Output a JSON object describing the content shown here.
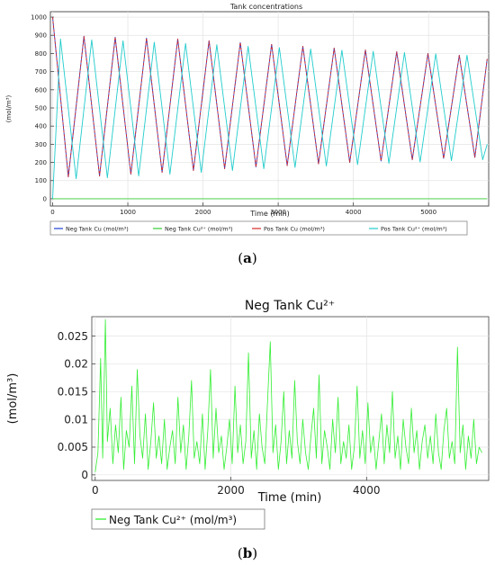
{
  "chart_data": [
    {
      "type": "line",
      "panel_label": "a",
      "title": "Tank concentrations",
      "xlabel": "Time (min)",
      "ylabel": "(mol/m³)",
      "xlim": [
        -30,
        5800
      ],
      "ylim": [
        -40,
        1030
      ],
      "xticks": [
        0,
        1000,
        2000,
        3000,
        4000,
        5000
      ],
      "yticks": [
        0,
        100,
        200,
        300,
        400,
        500,
        600,
        700,
        800,
        900,
        1000
      ],
      "grid": true,
      "legend_position": "bottom",
      "series": [
        {
          "name": "Neg Tank Cu (mol/m³)",
          "color": "#1f3fd6",
          "x": [
            0,
            208,
            416,
            624,
            832,
            1040,
            1248,
            1456,
            1664,
            1872,
            2080,
            2288,
            2496,
            2704,
            2912,
            3120,
            3328,
            3536,
            3744,
            3952,
            4160,
            4368,
            4576,
            4784,
            4992,
            5200,
            5408,
            5616,
            5780
          ],
          "y": [
            1000,
            120,
            895,
            125,
            890,
            135,
            885,
            145,
            880,
            155,
            870,
            165,
            860,
            175,
            850,
            182,
            840,
            192,
            830,
            200,
            820,
            208,
            810,
            215,
            800,
            222,
            790,
            228,
            770
          ]
        },
        {
          "name": "Neg Tank Cu²⁺ (mol/m³)",
          "color": "#33cc33",
          "x": [
            0,
            5780
          ],
          "y": [
            0,
            0
          ]
        },
        {
          "name": "Pos Tank Cu (mol/m³)",
          "color": "#d42a2a",
          "x": [
            0,
            208,
            416,
            624,
            832,
            1040,
            1248,
            1456,
            1664,
            1872,
            2080,
            2288,
            2496,
            2704,
            2912,
            3120,
            3328,
            3536,
            3744,
            3952,
            4160,
            4368,
            4576,
            4784,
            4992,
            5200,
            5408,
            5616,
            5780
          ],
          "y": [
            1000,
            120,
            895,
            125,
            890,
            135,
            885,
            145,
            880,
            155,
            870,
            165,
            860,
            175,
            850,
            182,
            840,
            192,
            830,
            200,
            820,
            208,
            810,
            215,
            800,
            222,
            790,
            228,
            770
          ]
        },
        {
          "name": "Pos Tank Cu²⁺ (mol/m³)",
          "color": "#22cccc",
          "x": [
            0,
            104,
            312,
            520,
            728,
            936,
            1144,
            1352,
            1560,
            1768,
            1976,
            2184,
            2392,
            2600,
            2808,
            3016,
            3224,
            3432,
            3640,
            3848,
            4056,
            4264,
            4472,
            4680,
            4888,
            5096,
            5304,
            5512,
            5720,
            5780
          ],
          "y": [
            0,
            880,
            110,
            875,
            115,
            870,
            125,
            862,
            135,
            855,
            145,
            848,
            155,
            840,
            165,
            832,
            172,
            825,
            180,
            818,
            188,
            812,
            195,
            805,
            202,
            798,
            210,
            790,
            215,
            300
          ]
        }
      ]
    },
    {
      "type": "line",
      "panel_label": "b",
      "title": "Neg Tank Cu²⁺",
      "xlabel": "Time (min)",
      "ylabel": "(mol/m³)",
      "xlim": [
        -50,
        5800
      ],
      "ylim": [
        -0.001,
        0.0285
      ],
      "xticks": [
        0,
        2000,
        4000
      ],
      "yticks": [
        0,
        0.005,
        0.01,
        0.015,
        0.02,
        0.025
      ],
      "ytick_labels": [
        "0",
        "0.005",
        "0.01",
        "0.015",
        "0.02",
        "0.025"
      ],
      "grid": true,
      "legend_position": "bottom-left",
      "series": [
        {
          "name": "Neg Tank Cu²⁺ (mol/m³)",
          "color": "#33ee33",
          "x": [
            0,
            40,
            80,
            110,
            150,
            180,
            220,
            260,
            300,
            340,
            380,
            420,
            460,
            500,
            540,
            580,
            620,
            660,
            700,
            740,
            780,
            820,
            860,
            900,
            940,
            980,
            1020,
            1060,
            1100,
            1140,
            1180,
            1220,
            1260,
            1300,
            1340,
            1380,
            1420,
            1460,
            1500,
            1540,
            1580,
            1620,
            1660,
            1700,
            1740,
            1780,
            1820,
            1860,
            1900,
            1940,
            1980,
            2020,
            2060,
            2100,
            2140,
            2180,
            2220,
            2260,
            2300,
            2340,
            2380,
            2420,
            2460,
            2500,
            2540,
            2580,
            2620,
            2660,
            2700,
            2740,
            2780,
            2820,
            2860,
            2900,
            2940,
            2980,
            3020,
            3060,
            3100,
            3140,
            3180,
            3220,
            3260,
            3300,
            3340,
            3380,
            3420,
            3460,
            3500,
            3540,
            3580,
            3620,
            3660,
            3700,
            3740,
            3780,
            3820,
            3860,
            3900,
            3940,
            3980,
            4020,
            4060,
            4100,
            4140,
            4180,
            4220,
            4260,
            4300,
            4340,
            4380,
            4420,
            4460,
            4500,
            4540,
            4580,
            4620,
            4660,
            4700,
            4740,
            4780,
            4820,
            4860,
            4900,
            4940,
            4980,
            5020,
            5060,
            5100,
            5140,
            5180,
            5220,
            5260,
            5300,
            5340,
            5380,
            5420,
            5460,
            5500,
            5540,
            5580,
            5620,
            5660,
            5700
          ],
          "y": [
            0.0005,
            0.004,
            0.021,
            0.003,
            0.028,
            0.006,
            0.012,
            0.002,
            0.009,
            0.004,
            0.014,
            0.001,
            0.008,
            0.005,
            0.016,
            0.002,
            0.019,
            0.007,
            0.003,
            0.011,
            0.001,
            0.006,
            0.013,
            0.003,
            0.007,
            0.002,
            0.01,
            0.001,
            0.005,
            0.008,
            0.002,
            0.014,
            0.004,
            0.009,
            0.001,
            0.007,
            0.017,
            0.003,
            0.006,
            0.002,
            0.011,
            0.001,
            0.008,
            0.019,
            0.003,
            0.012,
            0.004,
            0.007,
            0.001,
            0.005,
            0.01,
            0.002,
            0.016,
            0.004,
            0.009,
            0.002,
            0.006,
            0.022,
            0.003,
            0.008,
            0.001,
            0.011,
            0.005,
            0.002,
            0.013,
            0.024,
            0.004,
            0.009,
            0.001,
            0.006,
            0.015,
            0.002,
            0.008,
            0.003,
            0.017,
            0.006,
            0.002,
            0.01,
            0.004,
            0.001,
            0.007,
            0.012,
            0.003,
            0.018,
            0.002,
            0.008,
            0.005,
            0.001,
            0.01,
            0.004,
            0.014,
            0.002,
            0.006,
            0.003,
            0.009,
            0.001,
            0.005,
            0.016,
            0.003,
            0.008,
            0.002,
            0.013,
            0.004,
            0.007,
            0.001,
            0.006,
            0.011,
            0.002,
            0.009,
            0.004,
            0.015,
            0.003,
            0.007,
            0.001,
            0.01,
            0.005,
            0.002,
            0.012,
            0.004,
            0.008,
            0.001,
            0.006,
            0.009,
            0.003,
            0.007,
            0.002,
            0.011,
            0.004,
            0.001,
            0.008,
            0.012,
            0.003,
            0.006,
            0.002,
            0.023,
            0.004,
            0.009,
            0.001,
            0.007,
            0.003,
            0.01,
            0.002,
            0.005,
            0.004
          ]
        }
      ]
    }
  ]
}
